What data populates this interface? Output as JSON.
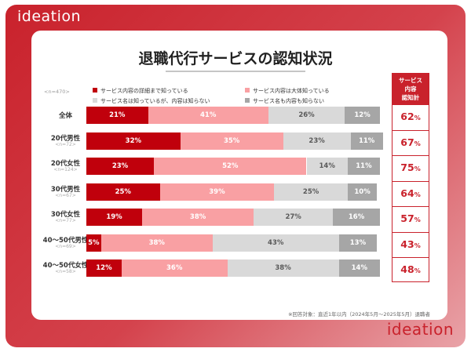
{
  "brand": {
    "logo": "ideation"
  },
  "title": "退職代行サービスの認知状況",
  "sample_total": "<n=470>",
  "footnote": "※回答対象：直近1年以内（2024年5月〜2025年5月）退職者",
  "awareness_header": [
    "サービス",
    "内容",
    "認知計"
  ],
  "colors": {
    "brand_red": "#c9222c",
    "detail": "#c0000c",
    "rough": "#f9a0a3",
    "name_only": "#d9d9d9",
    "unknown": "#a6a6a6"
  },
  "chart_data": {
    "type": "bar",
    "orientation": "horizontal-stacked-100",
    "title": "退職代行サービスの認知状況",
    "xlim": [
      0,
      100
    ],
    "unit": "%",
    "legend_position": "top",
    "categories": [
      "全体",
      "20代男性",
      "20代女性",
      "30代男性",
      "30代女性",
      "40～50代男性",
      "40～50代女性"
    ],
    "category_n": [
      "",
      "<n=72>",
      "<n=124>",
      "<n=67>",
      "<n=77>",
      "<n=69>",
      "<n=58>"
    ],
    "series": [
      {
        "name": "サービス内容の詳細まで知っている",
        "color": "#c0000c",
        "label_color": "#ffffff",
        "values": [
          21,
          32,
          23,
          25,
          19,
          5,
          12
        ]
      },
      {
        "name": "サービス内容は大体知っている",
        "color": "#f9a0a3",
        "label_color": "#ffffff",
        "values": [
          41,
          35,
          52,
          39,
          38,
          38,
          36
        ]
      },
      {
        "name": "サービス名は知っているが、内容は知らない",
        "color": "#d9d9d9",
        "label_color": "#595959",
        "values": [
          26,
          23,
          14,
          25,
          27,
          43,
          38
        ]
      },
      {
        "name": "サービス名も内容も知らない",
        "color": "#a6a6a6",
        "label_color": "#ffffff",
        "values": [
          12,
          11,
          11,
          10,
          16,
          13,
          14
        ]
      }
    ],
    "awareness_total": [
      62,
      67,
      75,
      64,
      57,
      43,
      48
    ]
  }
}
